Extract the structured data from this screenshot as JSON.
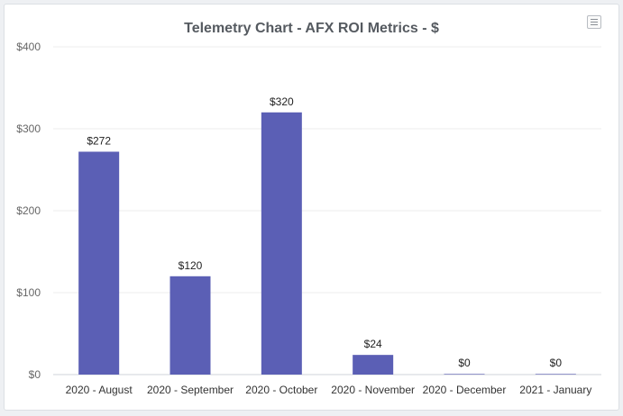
{
  "chart_data": {
    "type": "bar",
    "title": "Telemetry Chart - AFX ROI Metrics - $",
    "categories": [
      "2020 - August",
      "2020 - September",
      "2020 - October",
      "2020 - November",
      "2020 - December",
      "2021 - January"
    ],
    "values": [
      272,
      120,
      320,
      24,
      0,
      0
    ],
    "data_labels": [
      "$272",
      "$120",
      "$320",
      "$24",
      "$0",
      "$0"
    ],
    "ylim": [
      0,
      400
    ],
    "y_ticks": [
      0,
      100,
      200,
      300,
      400
    ],
    "y_tick_labels": [
      "$0",
      "$100",
      "$200",
      "$300",
      "$400"
    ],
    "xlabel": "",
    "ylabel": "",
    "grid": true,
    "bar_color": "#5b5fb5"
  },
  "menu_icon": "hamburger-menu-icon"
}
